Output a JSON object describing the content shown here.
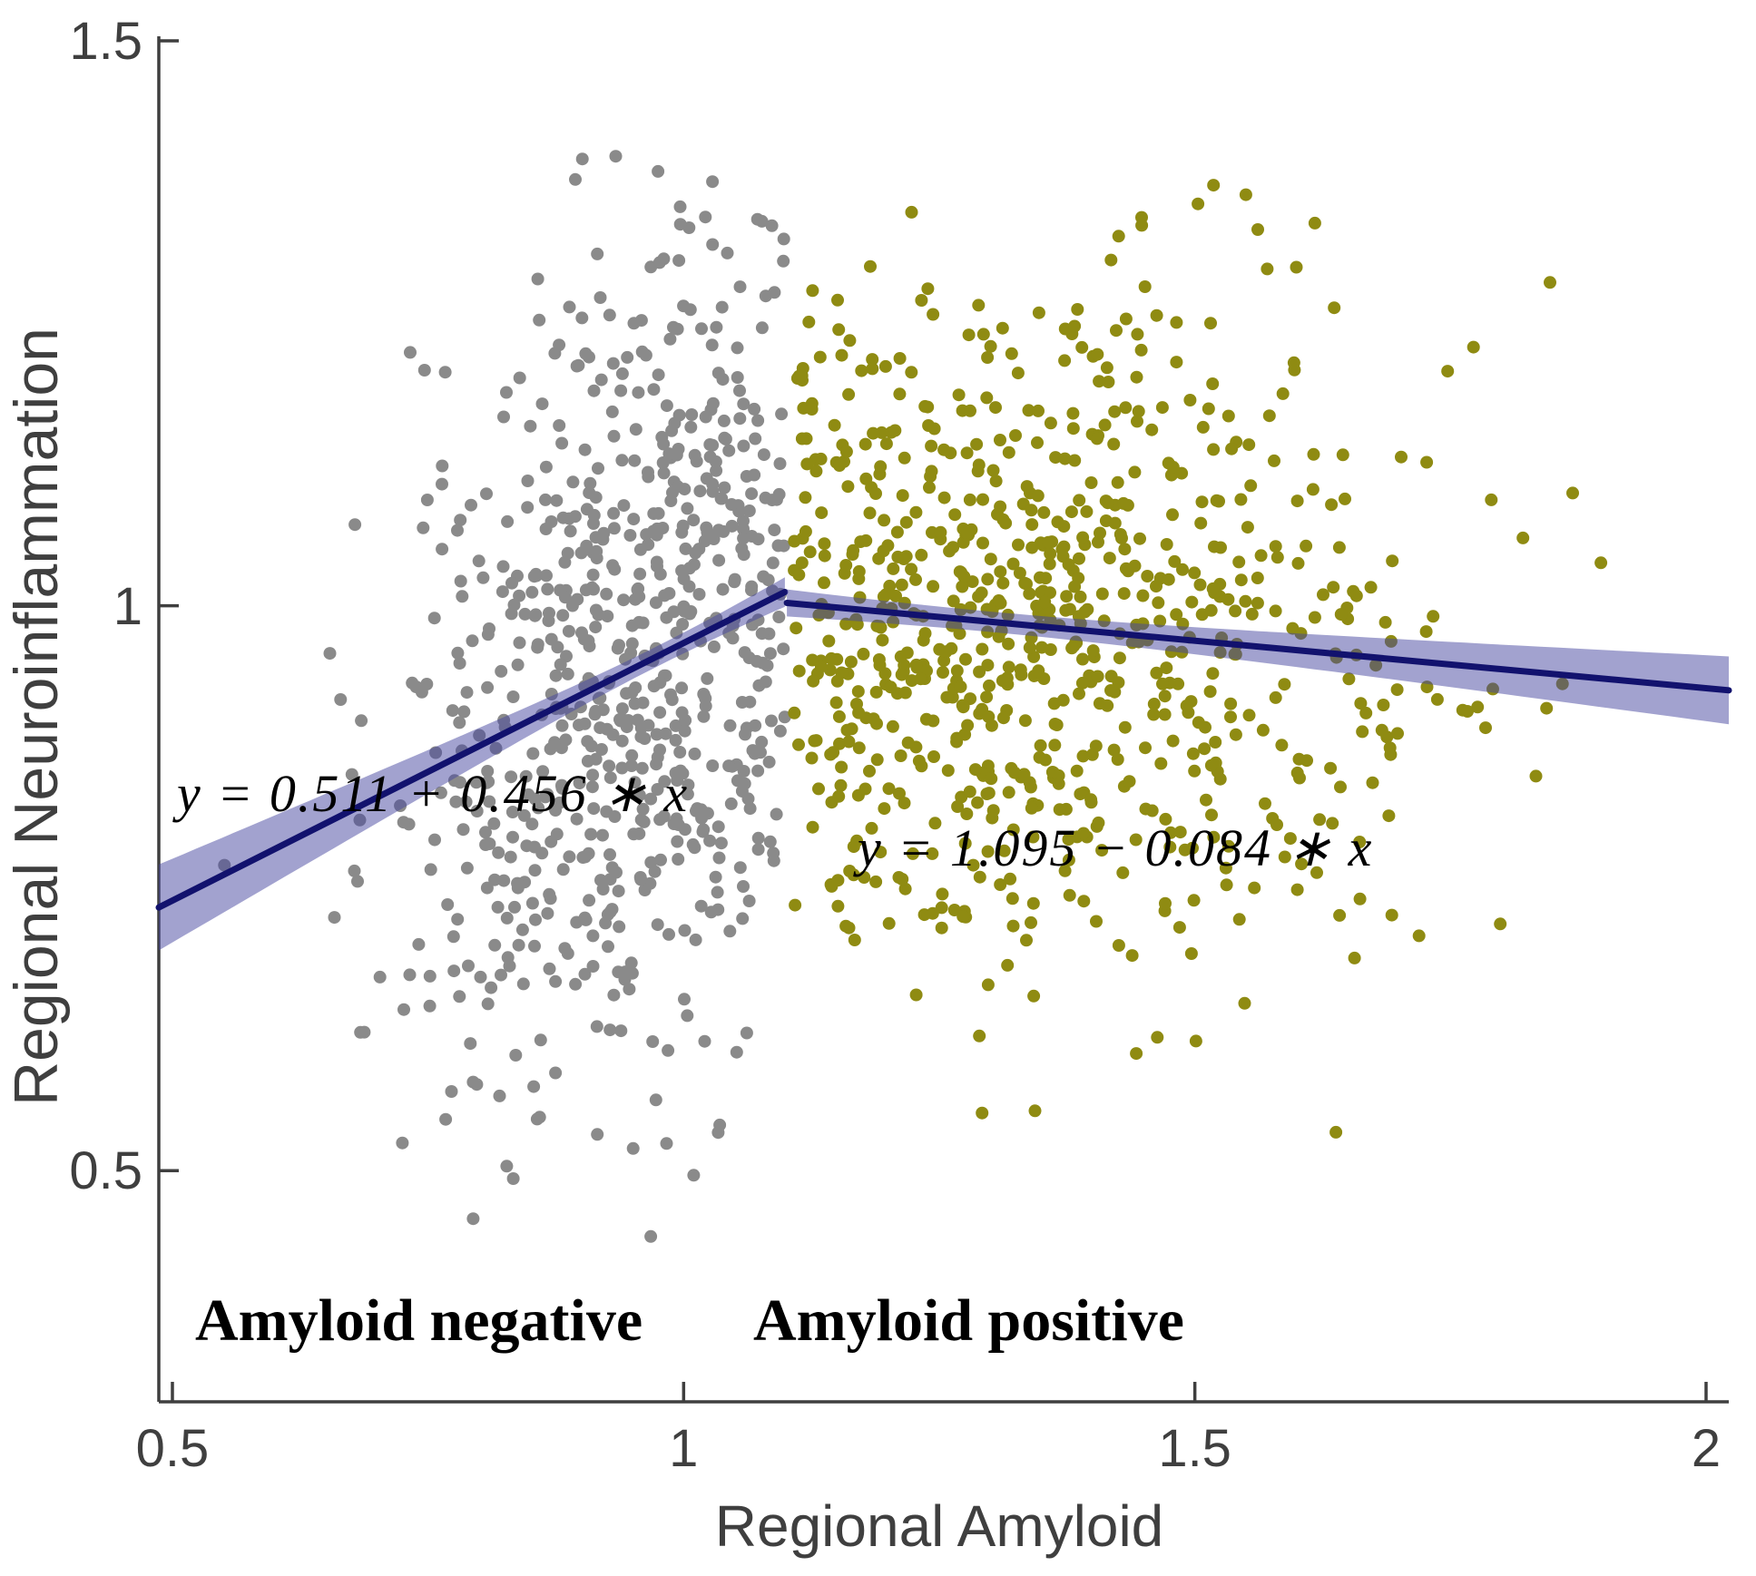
{
  "chart_data": {
    "type": "scatter",
    "title": "",
    "xlabel": "Regional Amyloid",
    "ylabel": "Regional Neuroinflammation",
    "xlim": [
      0.4867,
      2.0222
    ],
    "ylim": [
      0.2954,
      1.504
    ],
    "xticks": [
      0.5,
      1,
      1.5,
      2
    ],
    "xtick_labels": [
      "0.5",
      "1",
      "1.5",
      "2"
    ],
    "yticks": [
      0.5,
      1,
      1.5
    ],
    "ytick_labels": [
      "0.5",
      "1",
      "1.5"
    ],
    "grid": false,
    "legend": "none",
    "axis_color": "#3f3f3f",
    "groups": [
      {
        "name": "Amyloid negative",
        "color": "#8a8a8a",
        "count": 720,
        "seed": 42,
        "x_mean": 0.975,
        "x_sd": 0.135,
        "x_min": 0.468,
        "x_max": 1.099,
        "y_intercept": 0.511,
        "y_slope": 0.456,
        "y_noise_sd": 0.175,
        "y_min": 0.36,
        "y_max": 1.5
      },
      {
        "name": "Amyloid positive",
        "color": "#8f8b12",
        "count": 820,
        "seed": 2024,
        "x_mean": 1.3,
        "x_sd": 0.21,
        "x_min": 1.101,
        "x_max": 2.015,
        "y_intercept": 1.095,
        "y_slope": -0.084,
        "y_noise_sd": 0.15,
        "y_min": 0.43,
        "y_max": 1.385
      }
    ],
    "fits": [
      {
        "label": "y = 0.511 + 0.456 * x",
        "x_start": 0.4867,
        "x_end": 1.099,
        "intercept": 0.511,
        "slope": 0.456,
        "x_bar": 0.975,
        "band_hw_min": 0.009,
        "band_hw_far": 0.038,
        "band_far_x": 0.4867,
        "line_color": "#12126e",
        "band_color": "#4646a0",
        "band_opacity": 0.5
      },
      {
        "label": "y = 1.095 - 0.084 * x",
        "x_start": 1.101,
        "x_end": 2.0222,
        "intercept": 1.095,
        "slope": -0.084,
        "x_bar": 1.3,
        "band_hw_min": 0.009,
        "band_hw_far": 0.03,
        "band_far_x": 2.0222,
        "line_color": "#12126e",
        "band_color": "#4646a0",
        "band_opacity": 0.5
      }
    ],
    "annotations": {
      "equation_negative": "y = 0.511 + 0.456 ∗ x",
      "equation_positive": "y = 1.095 − 0.084 ∗ x",
      "group_negative": "Amyloid negative",
      "group_positive": "Amyloid positive"
    }
  }
}
